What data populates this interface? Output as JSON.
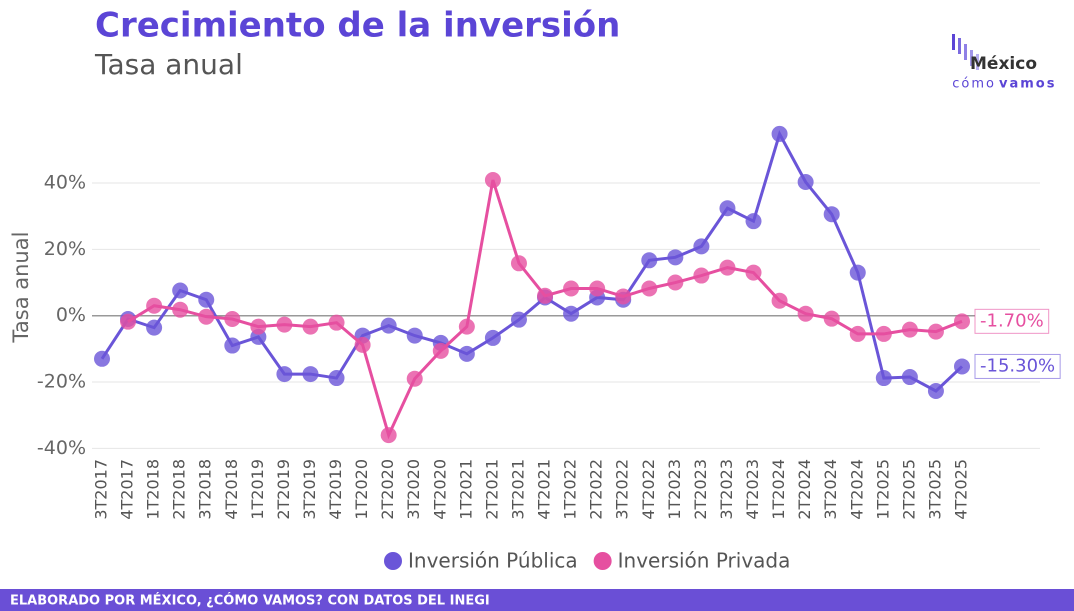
{
  "chart_data": {
    "type": "line",
    "title": "Crecimiento de la inversión",
    "subtitle": "Tasa anual",
    "y_label": "Tasa anual",
    "source": "ELABORADO POR MÉXICO, ¿CÓMO VAMOS? CON DATOS DEL INEGI",
    "logo": {
      "top": "México",
      "bottom_light": "cómo",
      "bottom_bold": "vamos"
    },
    "categories": [
      "3T2017",
      "4T2017",
      "1T2018",
      "2T2018",
      "3T2018",
      "4T2018",
      "1T2019",
      "2T2019",
      "3T2019",
      "4T2019",
      "1T2020",
      "2T2020",
      "3T2020",
      "4T2020",
      "1T2021",
      "2T2021",
      "3T2021",
      "4T2021",
      "1T2022",
      "2T2022",
      "3T2022",
      "4T2022",
      "1T2023",
      "2T2023",
      "3T2023",
      "4T2023",
      "1T2024",
      "2T2024",
      "3T2024",
      "4T2024",
      "1T2025",
      "2T2025",
      "3T2025",
      "4T2025"
    ],
    "series": [
      {
        "name": "Inversión Pública",
        "color": "#6a55d8",
        "values": [
          -13,
          -1,
          -3.6,
          7.6,
          4.8,
          -9,
          -6.4,
          -17.6,
          -17.6,
          -18.8,
          -6,
          -3,
          -6,
          -8.2,
          -11.5,
          -6.7,
          -1.2,
          5.5,
          0.6,
          5.5,
          4.8,
          16.7,
          17.6,
          20.9,
          32.4,
          28.5,
          54.8,
          40.3,
          30.6,
          13,
          -18.8,
          -18.5,
          -22.7,
          -15.3
        ],
        "value_labels": [
          null,
          null,
          null,
          null,
          null,
          null,
          null,
          null,
          null,
          null,
          null,
          null,
          null,
          null,
          null,
          null,
          null,
          null,
          null,
          null,
          null,
          null,
          null,
          null,
          null,
          null,
          null,
          null,
          null,
          null,
          null,
          null,
          null,
          "-15.30%"
        ]
      },
      {
        "name": "Inversión Privada",
        "color": "#e64fa0",
        "values": [
          null,
          -1.8,
          3,
          1.8,
          -0.3,
          -1,
          -3.3,
          -2.7,
          -3.3,
          -2.1,
          -8.8,
          -36,
          -19,
          -10.6,
          -3.3,
          40.9,
          15.8,
          6,
          8.2,
          8.2,
          5.8,
          8.2,
          10,
          12.1,
          14.5,
          13,
          4.5,
          0.6,
          -0.9,
          -5.5,
          -5.5,
          -4.2,
          -4.8,
          -1.7
        ],
        "value_labels": [
          null,
          null,
          null,
          null,
          null,
          null,
          null,
          null,
          null,
          null,
          null,
          null,
          null,
          null,
          null,
          null,
          null,
          null,
          null,
          null,
          null,
          null,
          null,
          null,
          null,
          null,
          null,
          null,
          null,
          null,
          null,
          null,
          null,
          "-1.70%"
        ]
      }
    ],
    "ylim": [
      -42,
      59
    ],
    "yticks": [
      {
        "value": -40,
        "label": "-40%"
      },
      {
        "value": -20,
        "label": "-20%"
      },
      {
        "value": 0,
        "label": "0%"
      },
      {
        "value": 20,
        "label": "20%"
      },
      {
        "value": 40,
        "label": "40%"
      }
    ],
    "grid": true,
    "legend": "bottom"
  }
}
